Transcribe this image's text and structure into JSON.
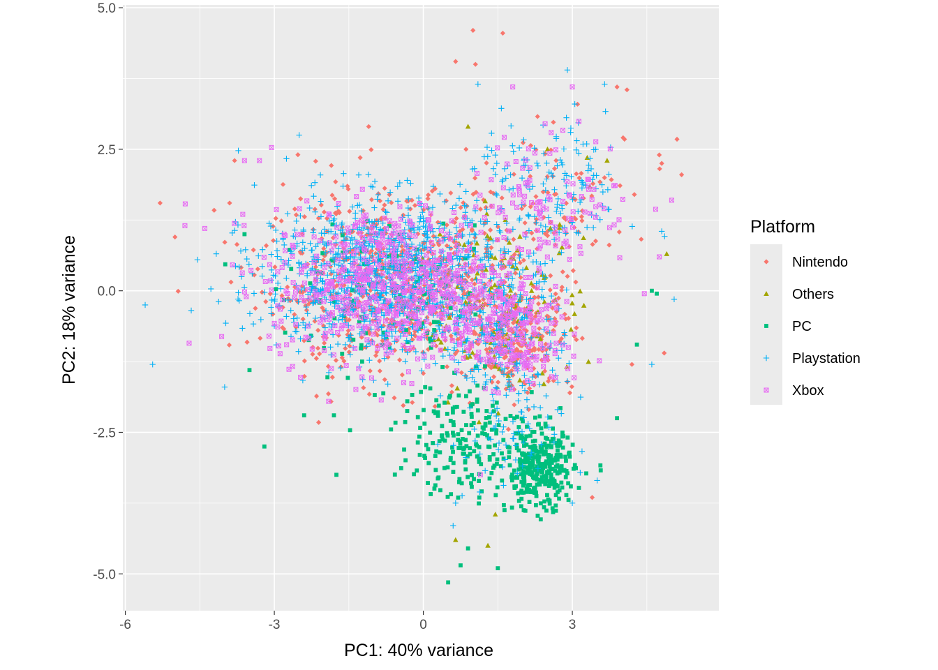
{
  "chart_data": {
    "type": "scatter",
    "title": "",
    "xlabel": "PC1: 40% variance",
    "ylabel": "PC2: 18% variance",
    "xlim": [
      -6.05,
      5.95
    ],
    "ylim": [
      -5.65,
      5.05
    ],
    "x_ticks": [
      -6,
      -3,
      0,
      3
    ],
    "x_tick_labels": [
      "-6",
      "-3",
      "0",
      "3"
    ],
    "y_ticks": [
      -5,
      -2.5,
      0,
      2.5,
      5
    ],
    "y_tick_labels": [
      "-5.0",
      "-2.5",
      "0.0",
      "2.5",
      "5.0"
    ],
    "grid": true,
    "legend": {
      "title": "Platform",
      "placement": "right"
    },
    "series": [
      {
        "name": "Nintendo",
        "color": "#F8766D",
        "marker": "diamond",
        "clusters": [
          {
            "n": 700,
            "cx": -0.5,
            "cy": 0.1,
            "sx": 2.2,
            "sy": 1.3
          },
          {
            "n": 220,
            "cx": 1.9,
            "cy": -0.8,
            "sx": 0.9,
            "sy": 0.8
          },
          {
            "n": 80,
            "cx": 2.8,
            "cy": 1.6,
            "sx": 1.5,
            "sy": 1.0
          }
        ],
        "points": [
          [
            1.0,
            4.6
          ],
          [
            1.6,
            4.55
          ],
          [
            0.65,
            4.05
          ],
          [
            1.05,
            4.0
          ],
          [
            -1.1,
            2.9
          ],
          [
            -5.3,
            1.55
          ],
          [
            -3.8,
            2.3
          ],
          [
            4.1,
            3.55
          ],
          [
            3.9,
            3.6
          ],
          [
            4.75,
            2.4
          ],
          [
            5.2,
            2.05
          ],
          [
            4.8,
            2.25
          ],
          [
            4.2,
            -1.3
          ],
          [
            4.85,
            -1.1
          ],
          [
            3.4,
            -3.65
          ],
          [
            -5.0,
            0.95
          ],
          [
            -3.9,
            1.55
          ]
        ]
      },
      {
        "name": "Others",
        "color": "#A3A500",
        "marker": "triangle",
        "clusters": [
          {
            "n": 90,
            "cx": 1.4,
            "cy": -0.6,
            "sx": 1.1,
            "sy": 1.2
          },
          {
            "n": 40,
            "cx": 2.2,
            "cy": 0.4,
            "sx": 1.0,
            "sy": 1.1
          }
        ],
        "points": [
          [
            0.65,
            -4.4
          ],
          [
            1.3,
            -4.5
          ],
          [
            1.45,
            -3.95
          ],
          [
            4.9,
            0.65
          ],
          [
            3.7,
            2.3
          ],
          [
            3.3,
            2.35
          ],
          [
            2.5,
            2.5
          ],
          [
            0.9,
            2.9
          ]
        ]
      },
      {
        "name": "PC",
        "color": "#00BF7D",
        "marker": "square",
        "clusters": [
          {
            "n": 300,
            "cx": 2.35,
            "cy": -3.2,
            "sx": 0.55,
            "sy": 0.55
          },
          {
            "n": 220,
            "cx": 1.0,
            "cy": -2.6,
            "sx": 1.3,
            "sy": 0.85
          },
          {
            "n": 120,
            "cx": -0.6,
            "cy": -0.2,
            "sx": 1.8,
            "sy": 0.9
          }
        ],
        "points": [
          [
            -3.2,
            -2.75
          ],
          [
            -3.5,
            -1.4
          ],
          [
            -2.4,
            -2.2
          ],
          [
            -1.8,
            -2.2
          ],
          [
            -1.75,
            -3.25
          ],
          [
            0.5,
            -5.15
          ],
          [
            0.75,
            -4.85
          ],
          [
            0.9,
            -4.55
          ],
          [
            1.5,
            -4.9
          ],
          [
            4.7,
            -0.05
          ],
          [
            4.6,
            0.0
          ],
          [
            3.9,
            -2.25
          ],
          [
            4.3,
            -0.95
          ],
          [
            -3.6,
            1.0
          ]
        ]
      },
      {
        "name": "Playstation",
        "color": "#00B0F6",
        "marker": "plus",
        "clusters": [
          {
            "n": 1100,
            "cx": -0.8,
            "cy": 0.3,
            "sx": 2.0,
            "sy": 1.1
          },
          {
            "n": 200,
            "cx": 1.7,
            "cy": -0.8,
            "sx": 1.0,
            "sy": 1.0
          },
          {
            "n": 150,
            "cx": 2.6,
            "cy": 1.8,
            "sx": 1.2,
            "sy": 1.0
          },
          {
            "n": 60,
            "cx": 1.6,
            "cy": -2.7,
            "sx": 0.9,
            "sy": 0.8
          }
        ],
        "points": [
          [
            2.9,
            3.9
          ],
          [
            3.65,
            3.65
          ],
          [
            1.1,
            3.65
          ],
          [
            -2.5,
            2.75
          ],
          [
            -5.6,
            -0.25
          ],
          [
            -5.45,
            -1.3
          ],
          [
            5.05,
            -0.15
          ],
          [
            4.6,
            -1.3
          ],
          [
            0.65,
            -3.75
          ],
          [
            0.6,
            -4.15
          ],
          [
            3.0,
            -3.75
          ],
          [
            3.5,
            -3.35
          ],
          [
            -4.0,
            -1.7
          ],
          [
            4.8,
            1.05
          ]
        ]
      },
      {
        "name": "Xbox",
        "color": "#E76BF3",
        "marker": "boxx",
        "clusters": [
          {
            "n": 650,
            "cx": -0.6,
            "cy": 0.1,
            "sx": 2.0,
            "sy": 1.1
          },
          {
            "n": 180,
            "cx": 1.7,
            "cy": -0.8,
            "sx": 0.9,
            "sy": 0.7
          },
          {
            "n": 110,
            "cx": 2.6,
            "cy": 1.6,
            "sx": 1.3,
            "sy": 1.0
          }
        ],
        "points": [
          [
            -3.6,
            2.3
          ],
          [
            -3.3,
            2.3
          ],
          [
            1.8,
            3.6
          ],
          [
            3.0,
            3.6
          ],
          [
            5.0,
            1.6
          ],
          [
            4.75,
            0.6
          ],
          [
            4.45,
            -0.05
          ],
          [
            -4.8,
            1.15
          ],
          [
            -4.4,
            1.1
          ],
          [
            1.15,
            -3.25
          ]
        ]
      }
    ]
  }
}
